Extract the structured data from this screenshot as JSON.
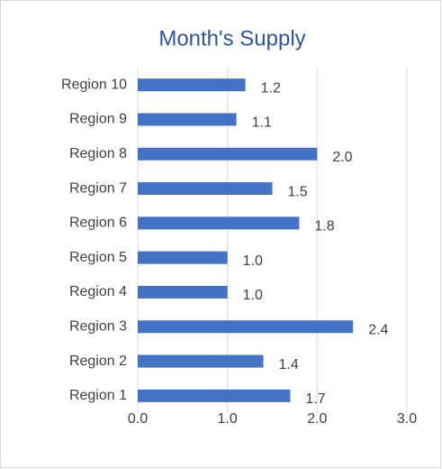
{
  "chart_data": {
    "type": "bar",
    "orientation": "horizontal",
    "title": "Month's Supply",
    "categories": [
      "Region 1",
      "Region 2",
      "Region 3",
      "Region 4",
      "Region 5",
      "Region 6",
      "Region 7",
      "Region 8",
      "Region 9",
      "Region 10"
    ],
    "values": [
      1.7,
      1.4,
      2.4,
      1.0,
      1.0,
      1.8,
      1.5,
      2.0,
      1.1,
      1.2
    ],
    "value_labels": [
      "1.7",
      "1.4",
      "2.4",
      "1.0",
      "1.0",
      "1.8",
      "1.5",
      "2.0",
      "1.1",
      "1.2"
    ],
    "color": "#4472c4",
    "xlim": [
      0,
      3
    ],
    "xticks": [
      {
        "value": 0,
        "label": "0.0"
      },
      {
        "value": 1,
        "label": "1.0"
      },
      {
        "value": 2,
        "label": "2.0"
      },
      {
        "value": 3,
        "label": "3.0"
      }
    ],
    "grid": true
  }
}
